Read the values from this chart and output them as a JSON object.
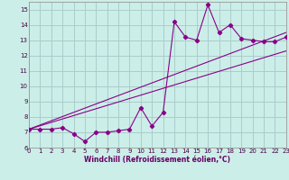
{
  "xlabel": "Windchill (Refroidissement éolien,°C)",
  "bg_color": "#cceee8",
  "grid_color": "#aacccc",
  "line_color": "#880088",
  "xmin": 0,
  "xmax": 23,
  "ymin": 6,
  "ymax": 15.5,
  "series1_x": [
    0,
    1,
    2,
    3,
    4,
    5,
    6,
    7,
    8,
    9,
    10,
    11,
    12,
    13,
    14,
    15,
    16,
    17,
    18,
    19,
    20,
    21,
    22,
    23
  ],
  "series1_y": [
    7.2,
    7.2,
    7.2,
    7.3,
    6.9,
    6.4,
    7.0,
    7.0,
    7.1,
    7.2,
    8.6,
    7.4,
    8.3,
    14.2,
    13.2,
    13.0,
    15.3,
    13.5,
    14.0,
    13.1,
    13.0,
    12.9,
    12.9,
    13.2
  ],
  "series2_x": [
    0,
    23
  ],
  "series2_y": [
    7.2,
    13.5
  ],
  "series3_x": [
    0,
    23
  ],
  "series3_y": [
    7.2,
    12.3
  ],
  "xticks": [
    0,
    1,
    2,
    3,
    4,
    5,
    6,
    7,
    8,
    9,
    10,
    11,
    12,
    13,
    14,
    15,
    16,
    17,
    18,
    19,
    20,
    21,
    22,
    23
  ],
  "yticks": [
    6,
    7,
    8,
    9,
    10,
    11,
    12,
    13,
    14,
    15
  ],
  "xlabel_color": "#660066",
  "xlabel_fontsize": 5.5,
  "tick_fontsize": 5,
  "linewidth": 0.8,
  "markersize": 2.2
}
